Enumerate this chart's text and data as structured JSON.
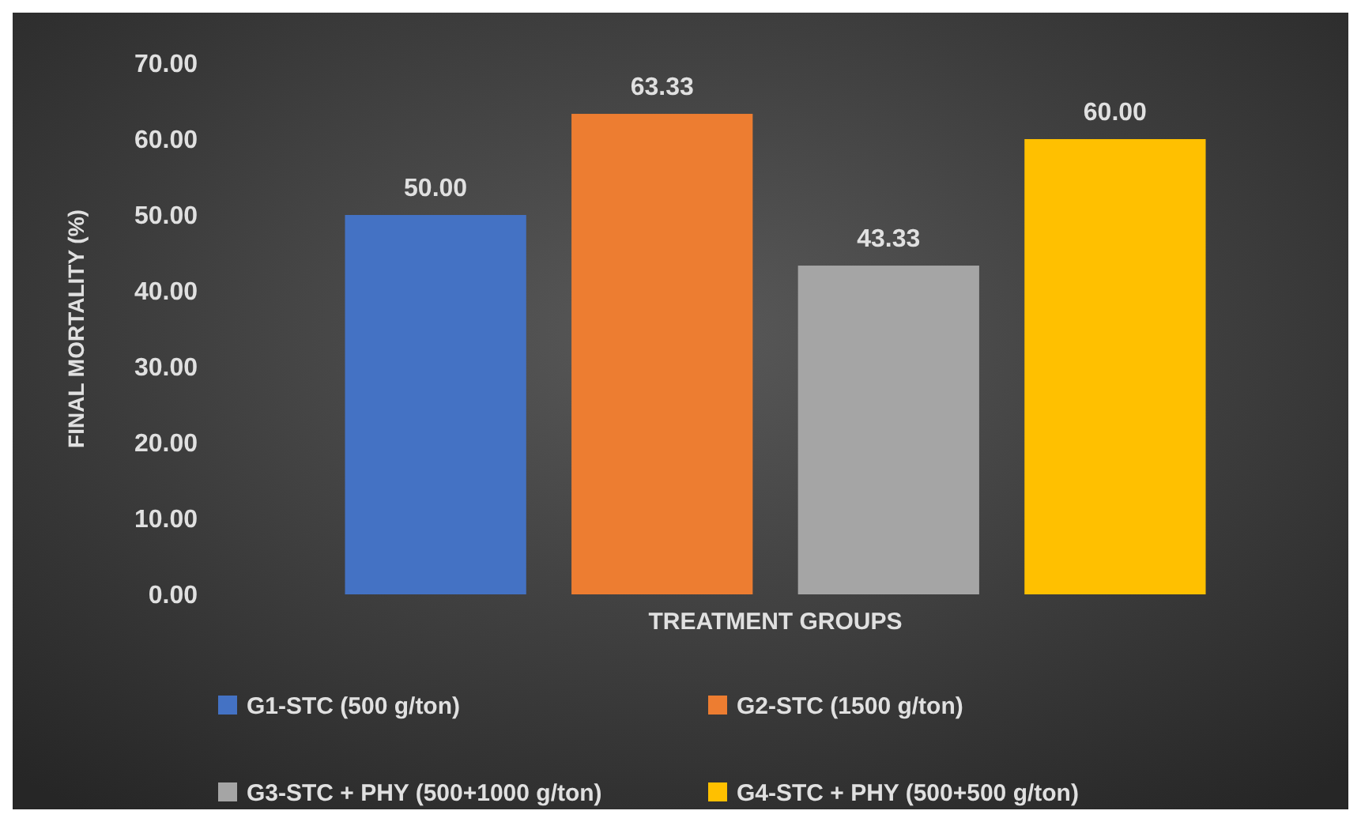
{
  "chart_data": {
    "type": "bar",
    "xlabel": "TREATMENT GROUPS",
    "ylabel": "FINAL MORTALITY (%)",
    "categories": [
      null
    ],
    "series": [
      {
        "name": "G1-STC (500 g/ton)",
        "color": "#4472c4",
        "values": [
          50.0
        ],
        "value_labels": [
          "50.00"
        ]
      },
      {
        "name": "G2-STC (1500 g/ton)",
        "color": "#ed7d31",
        "values": [
          63.33
        ],
        "value_labels": [
          "63.33"
        ]
      },
      {
        "name": "G3-STC + PHY (500+1000 g/ton)",
        "color": "#a5a5a5",
        "values": [
          43.33
        ],
        "value_labels": [
          "43.33"
        ]
      },
      {
        "name": "G4-STC + PHY (500+500 g/ton)",
        "color": "#ffc000",
        "values": [
          60.0
        ],
        "value_labels": [
          "60.00"
        ]
      }
    ],
    "ylim": [
      0,
      70
    ],
    "yticks": [
      {
        "value": 0,
        "label": "0.00"
      },
      {
        "value": 10,
        "label": "10.00"
      },
      {
        "value": 20,
        "label": "20.00"
      },
      {
        "value": 30,
        "label": "30.00"
      },
      {
        "value": 40,
        "label": "40.00"
      },
      {
        "value": 50,
        "label": "50.00"
      },
      {
        "value": 60,
        "label": "60.00"
      },
      {
        "value": 70,
        "label": "70.00"
      }
    ],
    "legend": "bottom",
    "grid": false
  }
}
